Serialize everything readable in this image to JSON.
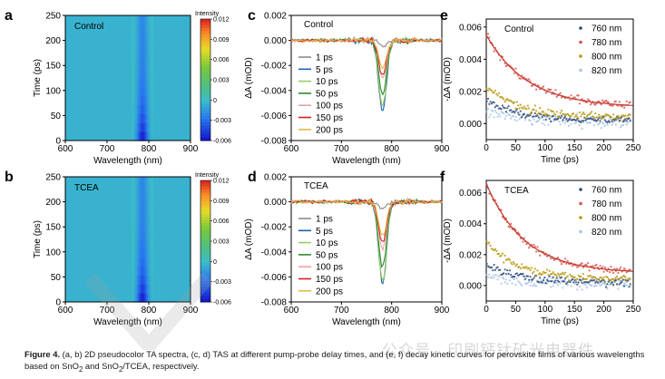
{
  "caption": {
    "lead": "Figure 4.",
    "text": " (a, b) 2D pseudocolor TA spectra, (c, d) TAS at different pump-probe delay times, and (e, f) decay kinetic curves for perovskite films of various wavelengths based on SnO",
    "sub1": "2",
    "mid": " and SnO",
    "sub2": "2",
    "tail": "/TCEA, respectively."
  },
  "watermark": "公众号 · 印刷钙钛矿光电器件",
  "chart_data": [
    {
      "id": "a",
      "type": "heatmap",
      "panel_label": "a",
      "inset_label": "Control",
      "xlabel": "Wavelength (nm)",
      "ylabel": "Time (ps)",
      "xlim": [
        600,
        900
      ],
      "ylim": [
        0,
        250
      ],
      "xticks": [
        600,
        700,
        800,
        900
      ],
      "yticks": [
        0,
        50,
        100,
        150,
        200,
        250
      ],
      "colorbar": {
        "title": "Intensity",
        "ticks": [
          0.012,
          0.009,
          0.006,
          0.003,
          0,
          -0.003,
          -0.006
        ],
        "range": [
          -0.006,
          0.012
        ]
      },
      "feature": {
        "center_nm": 785,
        "min_value": -0.006
      }
    },
    {
      "id": "b",
      "type": "heatmap",
      "panel_label": "b",
      "inset_label": "TCEA",
      "xlabel": "Wavelength (nm)",
      "ylabel": "Time (ps)",
      "xlim": [
        600,
        900
      ],
      "ylim": [
        0,
        250
      ],
      "xticks": [
        600,
        700,
        800,
        900
      ],
      "yticks": [
        0,
        50,
        100,
        150,
        200,
        250
      ],
      "colorbar": {
        "title": "Intensity",
        "ticks": [
          0.012,
          0.009,
          0.006,
          0.003,
          0,
          -0.003,
          -0.006
        ],
        "range": [
          -0.006,
          0.012
        ]
      },
      "feature": {
        "center_nm": 785,
        "min_value": -0.006
      }
    },
    {
      "id": "c",
      "type": "line",
      "panel_label": "c",
      "inset_label": "Control",
      "xlabel": "Wavelength (nm)",
      "ylabel": "ΔA (mOD)",
      "xlim": [
        600,
        900
      ],
      "ylim": [
        -0.008,
        0.002
      ],
      "xticks": [
        600,
        700,
        800,
        900
      ],
      "yticks": [
        0.002,
        0.0,
        -0.002,
        -0.004,
        -0.006,
        -0.008
      ],
      "ytick_labels": [
        "0.002",
        "0.000",
        "-0.002",
        "-0.004",
        "-0.006",
        "-0.008"
      ],
      "legend_position": "left",
      "series": [
        {
          "name": "1 ps",
          "color": "#8c8c8c",
          "min": -0.0005,
          "center": 782
        },
        {
          "name": "5 ps",
          "color": "#1f5fb0",
          "min": -0.0057,
          "center": 782
        },
        {
          "name": "10 ps",
          "color": "#9acd66",
          "min": -0.0053,
          "center": 782
        },
        {
          "name": "50 ps",
          "color": "#2e8b2e",
          "min": -0.0043,
          "center": 782
        },
        {
          "name": "100 ps",
          "color": "#f0a0a0",
          "min": -0.003,
          "center": 782
        },
        {
          "name": "150 ps",
          "color": "#d42020",
          "min": -0.0027,
          "center": 782
        },
        {
          "name": "200 ps",
          "color": "#e6b84a",
          "min": -0.0022,
          "center": 782
        }
      ]
    },
    {
      "id": "d",
      "type": "line",
      "panel_label": "d",
      "inset_label": "TCEA",
      "xlabel": "Wavelength (nm)",
      "ylabel": "ΔA (mOD)",
      "xlim": [
        600,
        900
      ],
      "ylim": [
        -0.008,
        0.002
      ],
      "xticks": [
        600,
        700,
        800,
        900
      ],
      "yticks": [
        0.002,
        0.0,
        -0.002,
        -0.004,
        -0.006,
        -0.008
      ],
      "ytick_labels": [
        "0.002",
        "0.000",
        "-0.002",
        "-0.004",
        "-0.006",
        "-0.008"
      ],
      "legend_position": "left",
      "series": [
        {
          "name": "1 ps",
          "color": "#8c8c8c",
          "min": -0.0005,
          "center": 782
        },
        {
          "name": "5 ps",
          "color": "#1f5fb0",
          "min": -0.0066,
          "center": 782
        },
        {
          "name": "10 ps",
          "color": "#9acd66",
          "min": -0.0063,
          "center": 782
        },
        {
          "name": "50 ps",
          "color": "#2e8b2e",
          "min": -0.0052,
          "center": 782
        },
        {
          "name": "100 ps",
          "color": "#f0a0a0",
          "min": -0.0038,
          "center": 782
        },
        {
          "name": "150 ps",
          "color": "#d42020",
          "min": -0.0032,
          "center": 782
        },
        {
          "name": "200 ps",
          "color": "#e6b84a",
          "min": -0.0027,
          "center": 782
        }
      ]
    },
    {
      "id": "e",
      "type": "scatter",
      "panel_label": "e",
      "inset_label": "Control",
      "xlabel": "Time (ps)",
      "ylabel": "-ΔA (mOD)",
      "xlim": [
        0,
        250
      ],
      "ylim": [
        -0.001,
        0.0065
      ],
      "xticks": [
        0,
        50,
        100,
        150,
        200,
        250
      ],
      "yticks": [
        0.0,
        0.002,
        0.004,
        0.006
      ],
      "ytick_labels": [
        "0.000",
        "0.002",
        "0.004",
        "0.006"
      ],
      "legend_position": "top-right",
      "series": [
        {
          "name": "760 nm",
          "color": "#2b4a7a",
          "a0": 0.0012,
          "tau": 60,
          "offset": 0.0002,
          "fit": false
        },
        {
          "name": "780 nm",
          "color": "#d9534f",
          "a0": 0.0045,
          "tau": 70,
          "offset": 0.001,
          "fit": true
        },
        {
          "name": "800 nm",
          "color": "#b8960c",
          "a0": 0.002,
          "tau": 55,
          "offset": 0.0004,
          "fit": false
        },
        {
          "name": "820 nm",
          "color": "#a9c4e6",
          "a0": 0.0006,
          "tau": 50,
          "offset": 0.0001,
          "fit": false
        }
      ]
    },
    {
      "id": "f",
      "type": "scatter",
      "panel_label": "f",
      "inset_label": "TCEA",
      "xlabel": "Time (ps)",
      "ylabel": "-ΔA (mOD)",
      "xlim": [
        0,
        250
      ],
      "ylim": [
        -0.001,
        0.0068
      ],
      "xticks": [
        0,
        50,
        100,
        150,
        200,
        250
      ],
      "yticks": [
        0.0,
        0.002,
        0.004,
        0.006
      ],
      "ytick_labels": [
        "0.000",
        "0.002",
        "0.004",
        "0.006"
      ],
      "legend_position": "top-right",
      "series": [
        {
          "name": "760 nm",
          "color": "#2b4a7a",
          "a0": 0.0012,
          "tau": 55,
          "offset": 0.0002,
          "fit": false
        },
        {
          "name": "780 nm",
          "color": "#d9534f",
          "a0": 0.0058,
          "tau": 65,
          "offset": 0.0008,
          "fit": true
        },
        {
          "name": "800 nm",
          "color": "#b8960c",
          "a0": 0.0024,
          "tau": 55,
          "offset": 0.0004,
          "fit": false
        },
        {
          "name": "820 nm",
          "color": "#a9c4e6",
          "a0": 0.0006,
          "tau": 50,
          "offset": 0.0001,
          "fit": false
        }
      ]
    }
  ]
}
